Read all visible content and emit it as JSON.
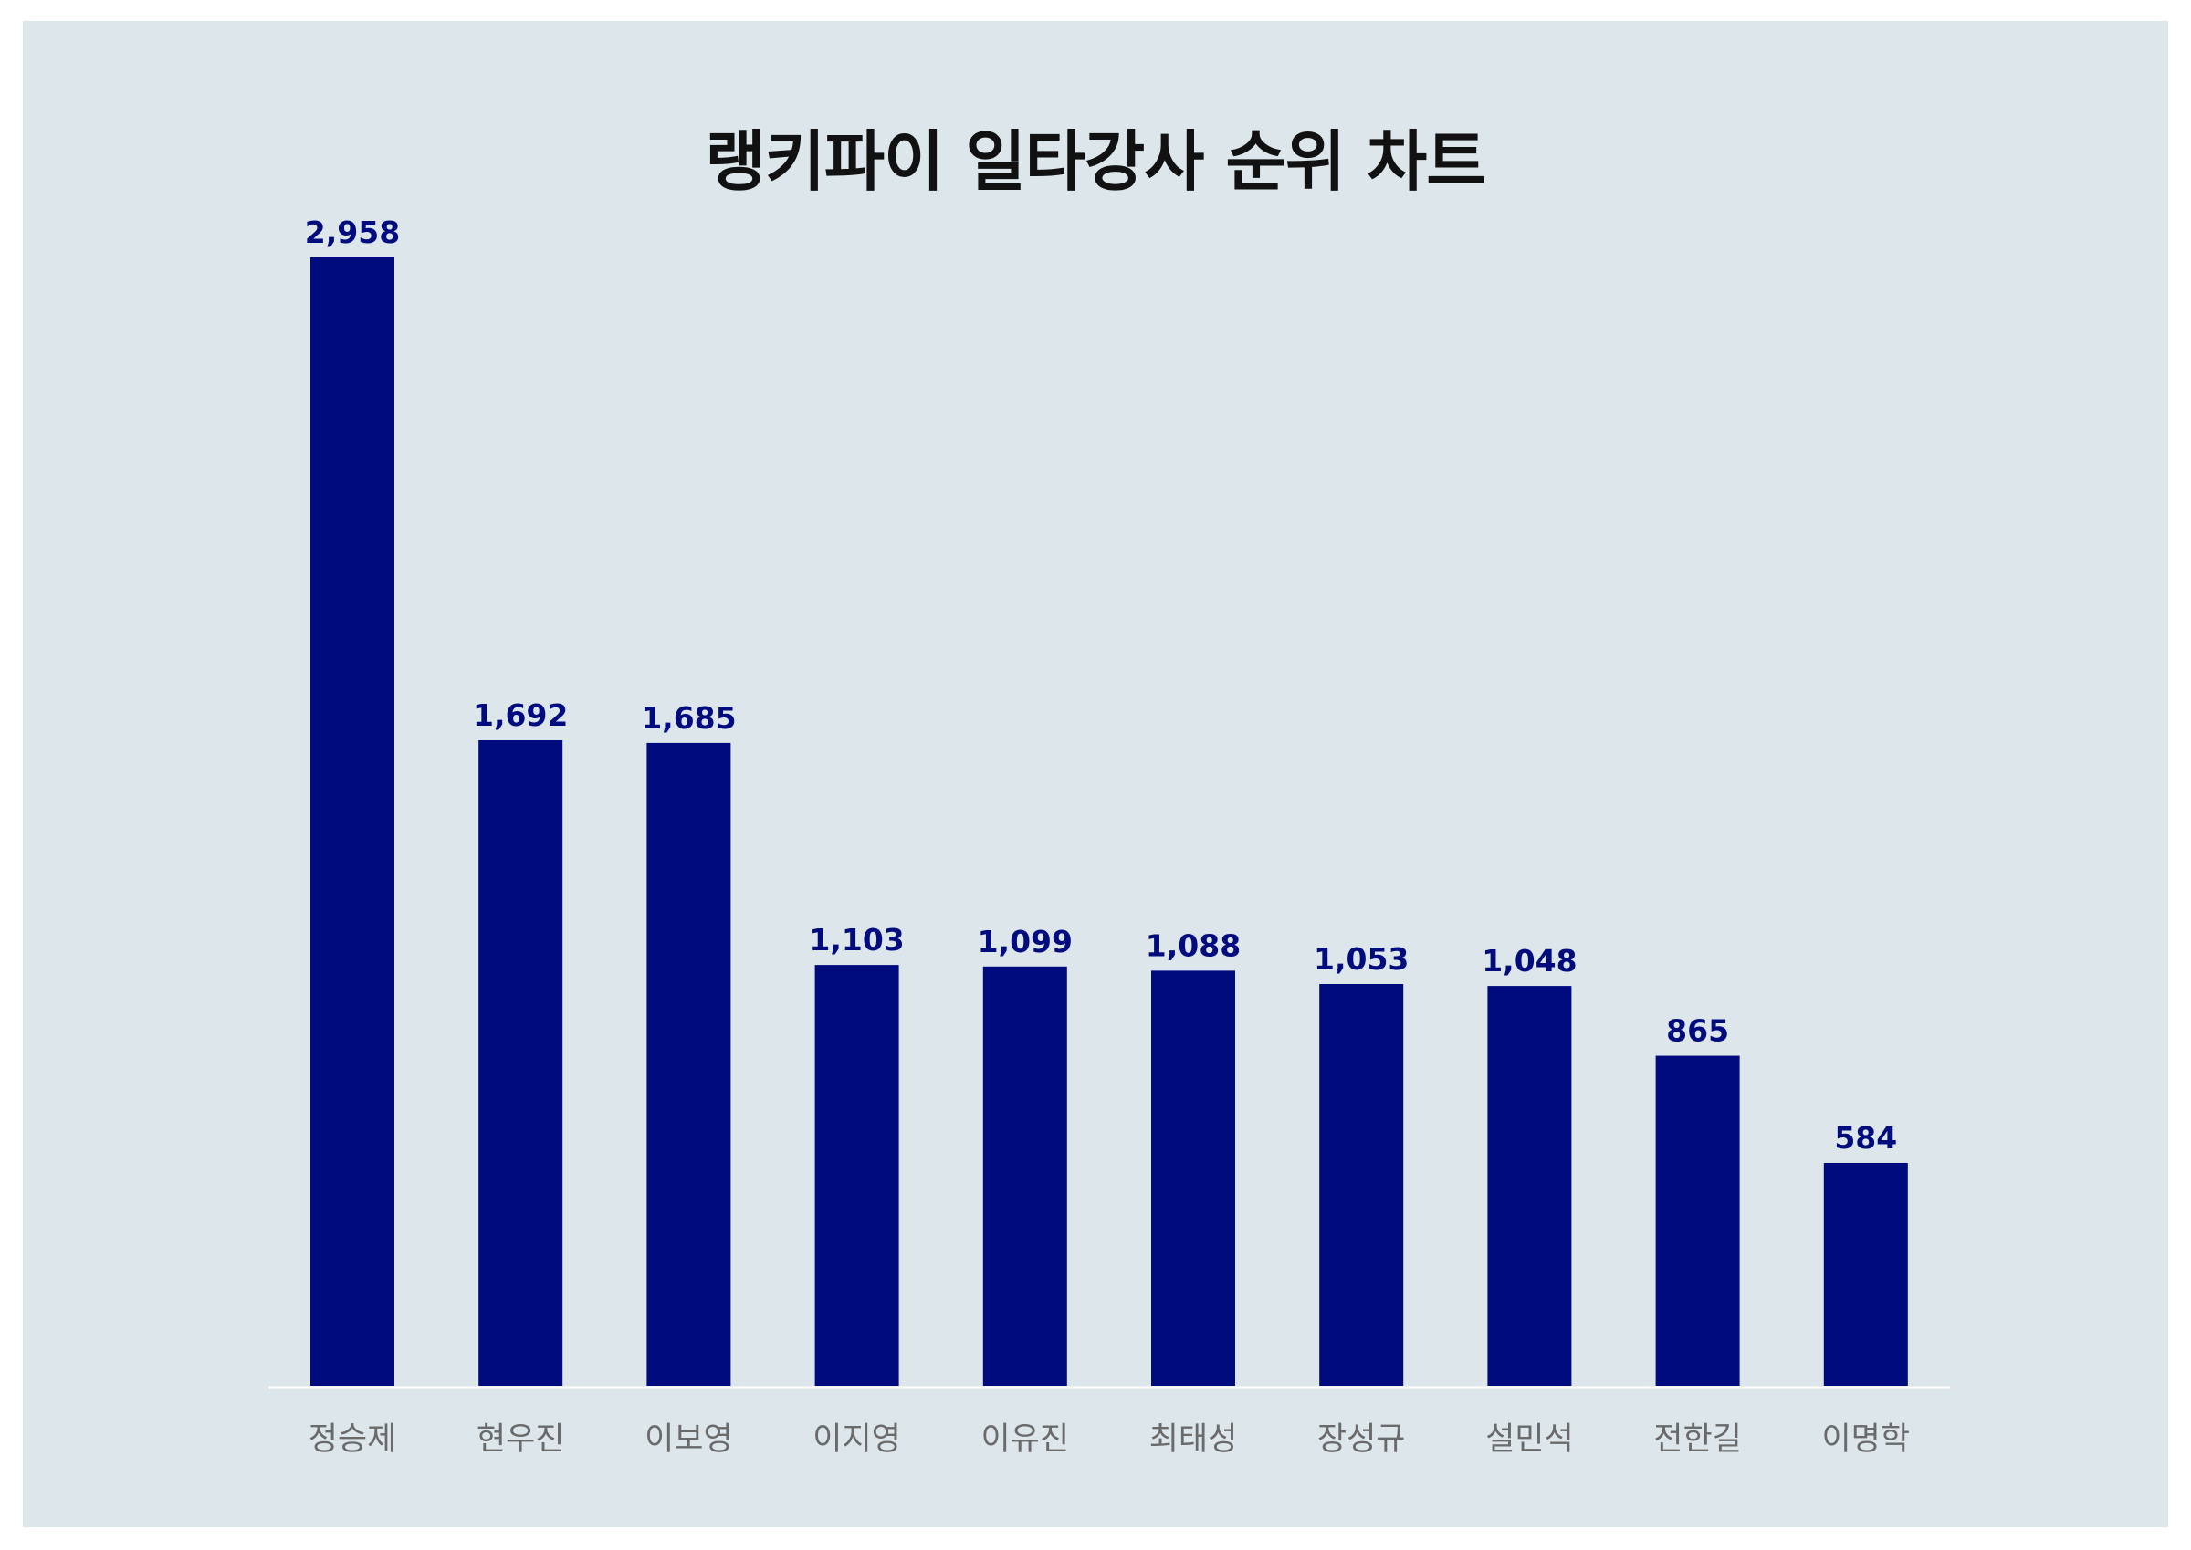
{
  "chart_data": {
    "type": "bar",
    "title": "랭키파이 일타강사 순위 차트",
    "categories": [
      "정승제",
      "현우진",
      "이보영",
      "이지영",
      "이유진",
      "최태성",
      "장성규",
      "설민석",
      "전한길",
      "이명학"
    ],
    "values": [
      2958,
      1692,
      1685,
      1103,
      1099,
      1088,
      1053,
      1048,
      865,
      584
    ],
    "value_labels": [
      "2,958",
      "1,692",
      "1,685",
      "1,103",
      "1,099",
      "1,088",
      "1,053",
      "1,048",
      "865",
      "584"
    ],
    "xlabel": "",
    "ylabel": "",
    "ylim": [
      0,
      2958
    ],
    "grid": false,
    "legend": "none"
  },
  "colors": {
    "background": "#dce6eb",
    "bar": "#000c7e",
    "value_label": "#000c7e",
    "category_label": "#6a6a6a",
    "axis_line": "#ffffff",
    "title": "#111111"
  }
}
